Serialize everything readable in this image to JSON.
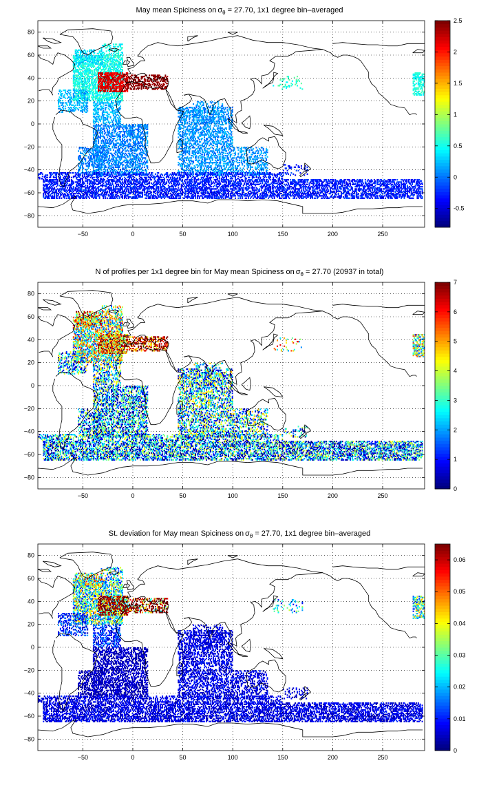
{
  "panels": [
    {
      "title_pre": "May mean Spiciness on",
      "title_sym": "σ",
      "title_sub": "θ",
      "title_post": "= 27.70, 1x1 degree bin–averaged",
      "colorbar": {
        "min": -0.8,
        "max": 2.5,
        "ticks": [
          "2.5",
          "2",
          "1.5",
          "1",
          "0.5",
          "0",
          "-0.5"
        ]
      },
      "field": "mean",
      "chart_data": {
        "type": "heatmap",
        "xlim": [
          -95,
          292
        ],
        "ylim": [
          -90,
          90
        ],
        "xticks": [
          -50,
          0,
          50,
          100,
          150,
          200,
          250
        ],
        "yticks": [
          80,
          60,
          40,
          20,
          0,
          -20,
          -40,
          -60,
          -80
        ],
        "grid": true,
        "colormap": "jet",
        "clim": [
          -0.8,
          2.5
        ]
      }
    },
    {
      "title_pre": "N of profiles per 1x1 degree bin for May mean Spiciness on",
      "title_sym": "σ",
      "title_sub": "θ",
      "title_post": "= 27.70 (20937 in total)",
      "colorbar": {
        "min": 0,
        "max": 7,
        "ticks": [
          "7",
          "6",
          "5",
          "4",
          "3",
          "2",
          "1",
          "0"
        ]
      },
      "field": "count",
      "chart_data": {
        "type": "heatmap",
        "xlim": [
          -95,
          292
        ],
        "ylim": [
          -90,
          90
        ],
        "xticks": [
          -50,
          0,
          50,
          100,
          150,
          200,
          250
        ],
        "yticks": [
          80,
          60,
          40,
          20,
          0,
          -20,
          -40,
          -60,
          -80
        ],
        "grid": true,
        "colormap": "jet",
        "clim": [
          0,
          7
        ],
        "total_profiles": 20937
      }
    },
    {
      "title_pre": "St. deviation for May mean Spiciness on",
      "title_sym": "σ",
      "title_sub": "θ",
      "title_post": "= 27.70, 1x1 degree bin–averaged",
      "colorbar": {
        "min": 0,
        "max": 0.065,
        "ticks": [
          "0.06",
          "0.05",
          "0.04",
          "0.03",
          "0.02",
          "0.01",
          "0"
        ]
      },
      "field": "std",
      "chart_data": {
        "type": "heatmap",
        "xlim": [
          -95,
          292
        ],
        "ylim": [
          -90,
          90
        ],
        "xticks": [
          -50,
          0,
          50,
          100,
          150,
          200,
          250
        ],
        "yticks": [
          80,
          60,
          40,
          20,
          0,
          -20,
          -40,
          -60,
          -80
        ],
        "grid": true,
        "colormap": "jet",
        "clim": [
          0,
          0.065
        ]
      }
    }
  ],
  "chart_data": [
    {
      "type": "heatmap",
      "variable": "May mean Spiciness",
      "clim": [
        -0.8,
        2.5
      ],
      "xlim": [
        -95,
        292
      ],
      "ylim": [
        -90,
        90
      ]
    },
    {
      "type": "heatmap",
      "variable": "N of profiles per 1x1 degree bin",
      "clim": [
        0,
        7
      ],
      "total": 20937,
      "xlim": [
        -95,
        292
      ],
      "ylim": [
        -90,
        90
      ]
    },
    {
      "type": "heatmap",
      "variable": "St. deviation",
      "clim": [
        0,
        0.065
      ],
      "xlim": [
        -95,
        292
      ],
      "ylim": [
        -90,
        90
      ]
    }
  ],
  "regions": {
    "north_atlantic": {
      "mean": 0.5,
      "count": 3.5,
      "std": 0.025
    },
    "mediterranean_outflow": {
      "mean": 2.2,
      "count": 5.5,
      "std": 0.065
    },
    "mediterranean": {
      "mean": 2.5,
      "count": 6.5,
      "std": 0.065
    },
    "tropical_atlantic": {
      "mean": 0.2,
      "count": 2.5,
      "std": 0.01
    },
    "south_atlantic": {
      "mean": 0.05,
      "count": 2.0,
      "std": 0.004
    },
    "indian_ocean": {
      "mean": 0.1,
      "count": 2.5,
      "std": 0.006
    },
    "southern_ocean": {
      "mean": -0.3,
      "count": 2.0,
      "std": 0.006
    },
    "labrador_sea": {
      "mean": 0.35,
      "count": 5.0,
      "std": 0.03
    },
    "kuroshio_ext": {
      "mean": 0.6,
      "count": 4.0,
      "std": 0.02
    }
  }
}
